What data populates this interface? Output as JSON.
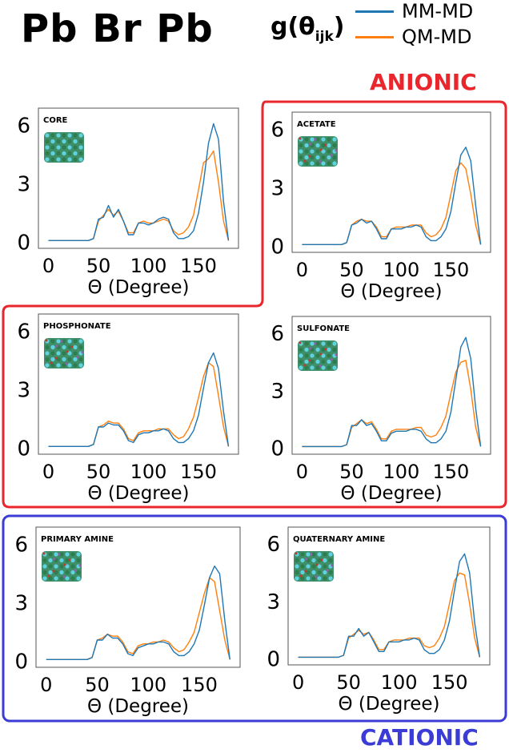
{
  "figure": {
    "title": "Pb Br Pb",
    "legend": {
      "title_main": "g(θ",
      "title_sub": "ijk",
      "title_close": ")",
      "entries": [
        {
          "label": "MM-MD",
          "color": "#1f77b4"
        },
        {
          "label": "QM-MD",
          "color": "#ff7f0e"
        }
      ]
    },
    "groups": [
      {
        "label": "ANIONIC",
        "color": "#e8262c"
      },
      {
        "label": "CATIONIC",
        "color": "#3b3bd6"
      }
    ]
  },
  "chart_data": [
    {
      "type": "line",
      "title": "CORE",
      "xlabel": "Θ (Degree)",
      "ylabel": "",
      "xlim": [
        -10,
        190
      ],
      "ylim": [
        -0.4,
        6.8
      ],
      "xticks": [
        0,
        50,
        100,
        150
      ],
      "yticks": [
        0,
        3,
        6
      ],
      "x": [
        0,
        40,
        45,
        50,
        55,
        60,
        65,
        70,
        75,
        80,
        85,
        90,
        95,
        100,
        105,
        110,
        115,
        120,
        125,
        130,
        135,
        140,
        145,
        150,
        155,
        160,
        165,
        170,
        175,
        180
      ],
      "series": [
        {
          "name": "MM-MD",
          "values": [
            0,
            0,
            0.1,
            1.1,
            1.2,
            1.8,
            1.2,
            1.6,
            1.0,
            0.3,
            0.3,
            0.9,
            0.9,
            0.8,
            0.9,
            1.1,
            1.2,
            1.1,
            0.4,
            0.1,
            0.1,
            0.2,
            0.5,
            1.4,
            3.0,
            5.0,
            6.0,
            5.2,
            2.0,
            0
          ]
        },
        {
          "name": "QM-MD",
          "values": [
            0,
            0,
            0.1,
            1.0,
            1.3,
            1.6,
            1.3,
            1.5,
            1.0,
            0.4,
            0.4,
            0.9,
            1.0,
            0.9,
            0.9,
            1.0,
            1.1,
            1.0,
            0.5,
            0.3,
            0.4,
            0.7,
            1.3,
            2.6,
            4.0,
            4.2,
            4.6,
            3.0,
            1.0,
            0
          ]
        }
      ]
    },
    {
      "type": "line",
      "title": "ACETATE",
      "xlabel": "Θ (Degree)",
      "ylabel": "",
      "xlim": [
        -10,
        190
      ],
      "ylim": [
        -0.4,
        6.8
      ],
      "xticks": [
        0,
        50,
        100,
        150
      ],
      "yticks": [
        0,
        3,
        6
      ],
      "x": [
        0,
        40,
        45,
        50,
        55,
        60,
        65,
        70,
        75,
        80,
        85,
        90,
        95,
        100,
        105,
        110,
        115,
        120,
        125,
        130,
        135,
        140,
        145,
        150,
        155,
        160,
        165,
        170,
        175,
        180
      ],
      "series": [
        {
          "name": "MM-MD",
          "values": [
            0,
            0,
            0.1,
            1.0,
            1.1,
            1.3,
            1.1,
            1.2,
            0.8,
            0.3,
            0.3,
            0.8,
            0.8,
            0.8,
            0.9,
            0.9,
            1.0,
            0.9,
            0.4,
            0.2,
            0.2,
            0.4,
            0.8,
            1.7,
            3.2,
            4.6,
            5.0,
            4.3,
            2.0,
            0
          ]
        },
        {
          "name": "QM-MD",
          "values": [
            0,
            0,
            0.1,
            1.0,
            1.2,
            1.3,
            1.2,
            1.2,
            0.9,
            0.4,
            0.4,
            0.8,
            0.9,
            0.9,
            0.9,
            1.0,
            1.0,
            1.0,
            0.6,
            0.4,
            0.5,
            0.8,
            1.4,
            2.6,
            3.8,
            4.2,
            3.9,
            2.6,
            1.0,
            0
          ]
        }
      ]
    },
    {
      "type": "line",
      "title": "PHOSPHONATE",
      "xlabel": "Θ (Degree)",
      "ylabel": "",
      "xlim": [
        -10,
        190
      ],
      "ylim": [
        -0.4,
        6.8
      ],
      "xticks": [
        0,
        50,
        100,
        150
      ],
      "yticks": [
        0,
        3,
        6
      ],
      "x": [
        0,
        40,
        45,
        50,
        55,
        60,
        65,
        70,
        75,
        80,
        85,
        90,
        95,
        100,
        105,
        110,
        115,
        120,
        125,
        130,
        135,
        140,
        145,
        150,
        155,
        160,
        165,
        170,
        175,
        180
      ],
      "series": [
        {
          "name": "MM-MD",
          "values": [
            0,
            0,
            0.1,
            1.0,
            1.0,
            1.2,
            1.1,
            1.1,
            0.8,
            0.3,
            0.2,
            0.6,
            0.7,
            0.7,
            0.8,
            0.8,
            0.9,
            0.8,
            0.4,
            0.2,
            0.2,
            0.4,
            0.8,
            1.6,
            3.0,
            4.3,
            4.8,
            4.0,
            1.8,
            0
          ]
        },
        {
          "name": "QM-MD",
          "values": [
            0,
            0,
            0.1,
            1.0,
            1.1,
            1.3,
            1.2,
            1.2,
            0.9,
            0.4,
            0.3,
            0.7,
            0.8,
            0.8,
            0.8,
            0.9,
            0.9,
            0.9,
            0.6,
            0.4,
            0.5,
            0.9,
            1.5,
            2.5,
            3.6,
            4.3,
            4.1,
            2.6,
            1.0,
            0
          ]
        }
      ]
    },
    {
      "type": "line",
      "title": "SULFONATE",
      "xlabel": "Θ (Degree)",
      "ylabel": "",
      "xlim": [
        -10,
        190
      ],
      "ylim": [
        -0.4,
        6.8
      ],
      "xticks": [
        0,
        50,
        100,
        150
      ],
      "yticks": [
        0,
        3,
        6
      ],
      "x": [
        0,
        40,
        45,
        50,
        55,
        60,
        65,
        70,
        75,
        80,
        85,
        90,
        95,
        100,
        105,
        110,
        115,
        120,
        125,
        130,
        135,
        140,
        145,
        150,
        155,
        160,
        165,
        170,
        175,
        180
      ],
      "series": [
        {
          "name": "MM-MD",
          "values": [
            0,
            0,
            0.1,
            1.1,
            1.1,
            1.4,
            1.1,
            1.2,
            0.8,
            0.3,
            0.3,
            0.7,
            0.8,
            0.8,
            0.8,
            0.9,
            0.9,
            0.8,
            0.4,
            0.2,
            0.2,
            0.4,
            0.8,
            1.8,
            3.5,
            5.2,
            5.7,
            4.6,
            2.0,
            0
          ]
        },
        {
          "name": "QM-MD",
          "values": [
            0,
            0,
            0.1,
            1.0,
            1.2,
            1.4,
            1.2,
            1.3,
            0.9,
            0.4,
            0.4,
            0.8,
            0.9,
            0.9,
            0.9,
            0.9,
            1.0,
            1.0,
            0.6,
            0.5,
            0.6,
            1.0,
            1.6,
            2.8,
            3.9,
            4.4,
            4.5,
            3.0,
            1.0,
            0
          ]
        }
      ]
    },
    {
      "type": "line",
      "title": "PRIMARY AMINE",
      "xlabel": "Θ (Degree)",
      "ylabel": "",
      "xlim": [
        -10,
        190
      ],
      "ylim": [
        -0.4,
        6.8
      ],
      "xticks": [
        0,
        50,
        100,
        150
      ],
      "yticks": [
        0,
        3,
        6
      ],
      "x": [
        0,
        40,
        45,
        50,
        55,
        60,
        65,
        70,
        75,
        80,
        85,
        90,
        95,
        100,
        105,
        110,
        115,
        120,
        125,
        130,
        135,
        140,
        145,
        150,
        155,
        160,
        165,
        170,
        175,
        180
      ],
      "series": [
        {
          "name": "MM-MD",
          "values": [
            0,
            0,
            0.1,
            1.0,
            1.0,
            1.3,
            1.1,
            1.1,
            0.8,
            0.3,
            0.2,
            0.6,
            0.7,
            0.8,
            0.8,
            0.9,
            0.9,
            0.8,
            0.4,
            0.2,
            0.2,
            0.4,
            0.8,
            1.5,
            2.8,
            4.2,
            4.8,
            4.4,
            2.0,
            0
          ]
        },
        {
          "name": "QM-MD",
          "values": [
            0,
            0,
            0.1,
            1.0,
            1.1,
            1.3,
            1.2,
            1.2,
            0.9,
            0.4,
            0.3,
            0.7,
            0.8,
            0.8,
            0.9,
            0.9,
            1.0,
            0.9,
            0.6,
            0.4,
            0.5,
            0.9,
            1.4,
            2.4,
            3.4,
            4.2,
            4.0,
            2.5,
            1.0,
            0
          ]
        }
      ]
    },
    {
      "type": "line",
      "title": "QUATERNARY AMINE",
      "xlabel": "Θ (Degree)",
      "ylabel": "",
      "xlim": [
        -10,
        190
      ],
      "ylim": [
        -0.4,
        6.8
      ],
      "xticks": [
        0,
        50,
        100,
        150
      ],
      "yticks": [
        0,
        3,
        6
      ],
      "x": [
        0,
        40,
        45,
        50,
        55,
        60,
        65,
        70,
        75,
        80,
        85,
        90,
        95,
        100,
        105,
        110,
        115,
        120,
        125,
        130,
        135,
        140,
        145,
        150,
        155,
        160,
        165,
        170,
        175,
        180
      ],
      "series": [
        {
          "name": "MM-MD",
          "values": [
            0,
            0,
            0.1,
            1.1,
            1.1,
            1.5,
            1.1,
            1.3,
            0.8,
            0.3,
            0.3,
            0.8,
            0.8,
            0.8,
            0.9,
            0.9,
            1.0,
            0.9,
            0.4,
            0.2,
            0.2,
            0.4,
            0.9,
            1.9,
            3.5,
            5.0,
            5.4,
            4.4,
            1.8,
            0
          ]
        },
        {
          "name": "QM-MD",
          "values": [
            0,
            0,
            0.1,
            1.0,
            1.2,
            1.4,
            1.2,
            1.3,
            0.9,
            0.4,
            0.4,
            0.8,
            0.9,
            0.9,
            0.9,
            1.0,
            1.0,
            1.0,
            0.6,
            0.5,
            0.6,
            1.0,
            1.6,
            2.8,
            4.0,
            4.4,
            4.3,
            2.8,
            1.0,
            0
          ]
        }
      ]
    }
  ]
}
